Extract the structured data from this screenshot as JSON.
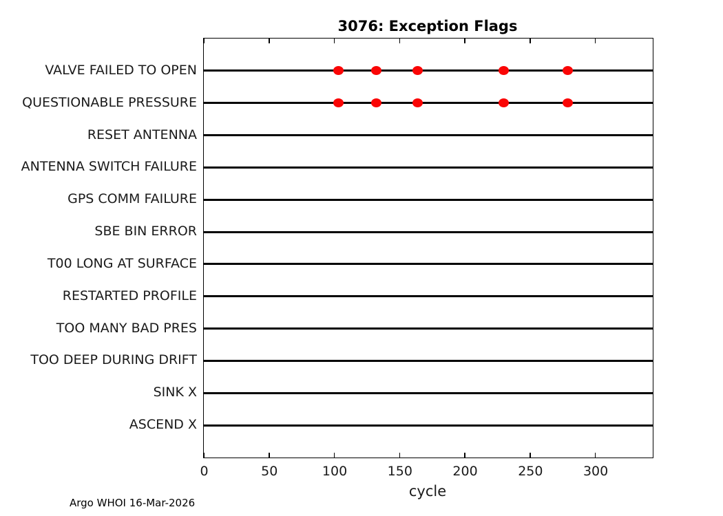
{
  "title": "3076: Exception Flags",
  "footer": "Argo WHOI 16-Mar-2026",
  "chart_data": {
    "type": "scatter",
    "title": "3076: Exception Flags",
    "xlabel": "cycle",
    "ylabel": "",
    "xlim": [
      0,
      344
    ],
    "xticks": [
      0,
      50,
      100,
      150,
      200,
      250,
      300
    ],
    "grid": false,
    "legend": null,
    "categories": [
      "VALVE FAILED TO OPEN",
      "QUESTIONABLE PRESSURE",
      "RESET ANTENNA",
      "ANTENNA SWITCH FAILURE",
      "GPS COMM FAILURE",
      "SBE BIN ERROR",
      "T00 LONG AT SURFACE",
      "RESTARTED PROFILE",
      "TOO MANY BAD PRES",
      "TOO DEEP DURING DRIFT",
      "SINK X",
      "ASCEND X"
    ],
    "series": [
      {
        "name": "VALVE FAILED TO OPEN",
        "x": [
          103,
          132,
          164,
          230,
          279
        ]
      },
      {
        "name": "QUESTIONABLE PRESSURE",
        "x": [
          103,
          132,
          164,
          230,
          279
        ]
      }
    ],
    "marker_color": "#fa0505",
    "line_color": "#000000"
  }
}
